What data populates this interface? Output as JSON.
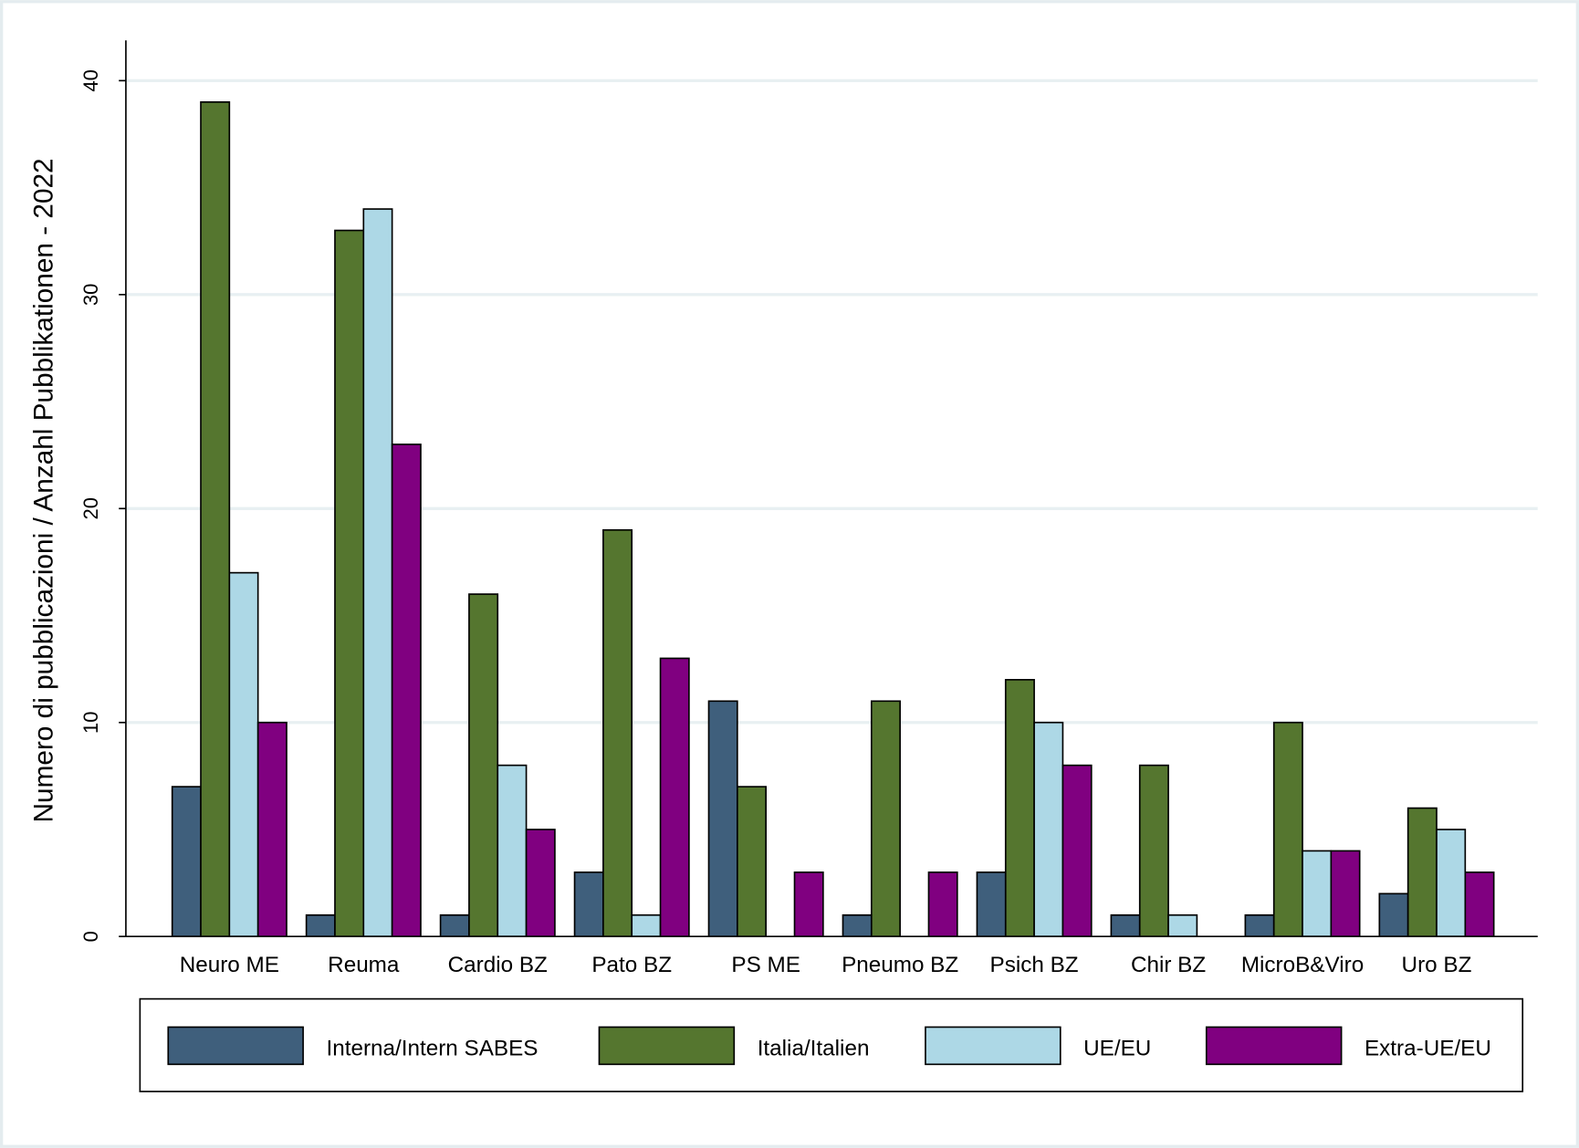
{
  "chart_data": {
    "type": "bar",
    "title": "",
    "xlabel": "",
    "ylabel": "Numero di pubblicazioni / Anzahl Pubblikationen - 2022",
    "ylim": [
      0,
      42
    ],
    "yticks": [
      0,
      10,
      20,
      30,
      40
    ],
    "grid": true,
    "legend_placement": "bottom",
    "categories": [
      "Neuro ME",
      "Reuma",
      "Cardio BZ",
      "Pato BZ",
      "PS ME",
      "Pneumo BZ",
      "Psich BZ",
      "Chir BZ",
      "MicroB&Viro",
      "Uro BZ"
    ],
    "series": [
      {
        "name": "Interna/Intern SABES",
        "color": "#3f5f7c",
        "values": [
          7,
          1,
          1,
          3,
          11,
          1,
          3,
          1,
          1,
          2
        ]
      },
      {
        "name": "Italia/Italien",
        "color": "#55762f",
        "values": [
          39,
          33,
          16,
          19,
          7,
          11,
          12,
          8,
          10,
          6
        ]
      },
      {
        "name": "UE/EU",
        "color": "#add8e6",
        "values": [
          17,
          34,
          8,
          1,
          0,
          0,
          10,
          1,
          4,
          5
        ]
      },
      {
        "name": "Extra-UE/EU",
        "color": "#800080",
        "values": [
          10,
          23,
          5,
          13,
          3,
          3,
          8,
          0,
          4,
          3
        ]
      }
    ]
  }
}
